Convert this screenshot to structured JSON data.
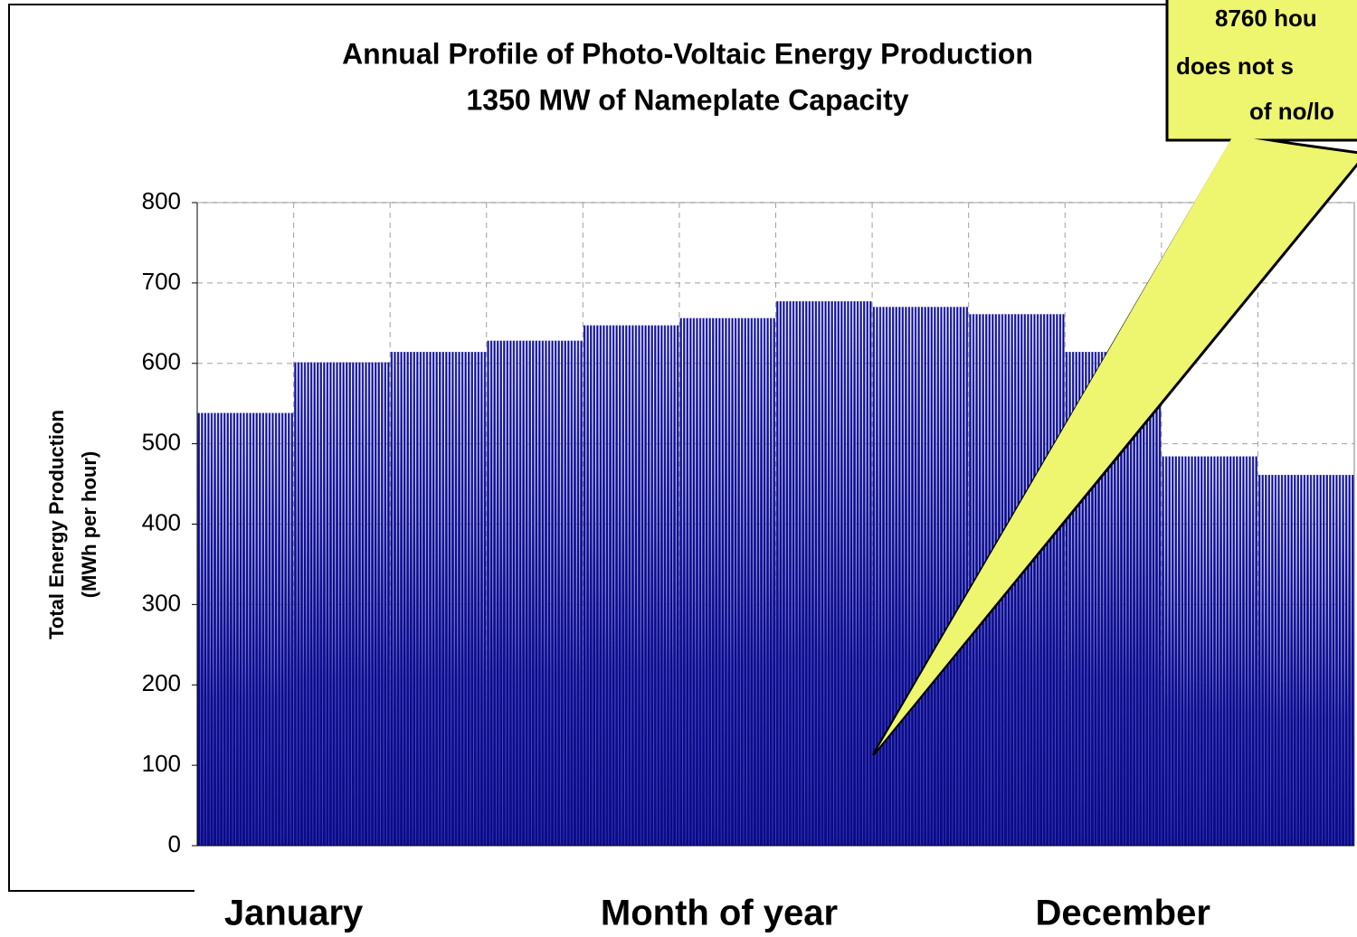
{
  "chart_data": {
    "type": "spikes",
    "title": [
      "Annual Profile of Photo-Voltaic Energy Production",
      "1350 MW of Nameplate Capacity"
    ],
    "y_label": [
      "Total Energy Production",
      "(MWh per hour)"
    ],
    "x_label": "Month of year",
    "categories": [
      "January",
      null,
      null,
      null,
      null,
      null,
      null,
      null,
      null,
      null,
      null,
      "December"
    ],
    "values": [
      538,
      601,
      614,
      628,
      647,
      656,
      677,
      670,
      661,
      614,
      484,
      461
    ],
    "color": "#0b0b88",
    "ylim": [
      0,
      800
    ],
    "yticks": [
      0,
      100,
      200,
      300,
      400,
      500,
      600,
      700,
      800
    ],
    "grid": true,
    "annotation": [
      "8760 hou",
      "does not s",
      "of no/lo"
    ]
  }
}
